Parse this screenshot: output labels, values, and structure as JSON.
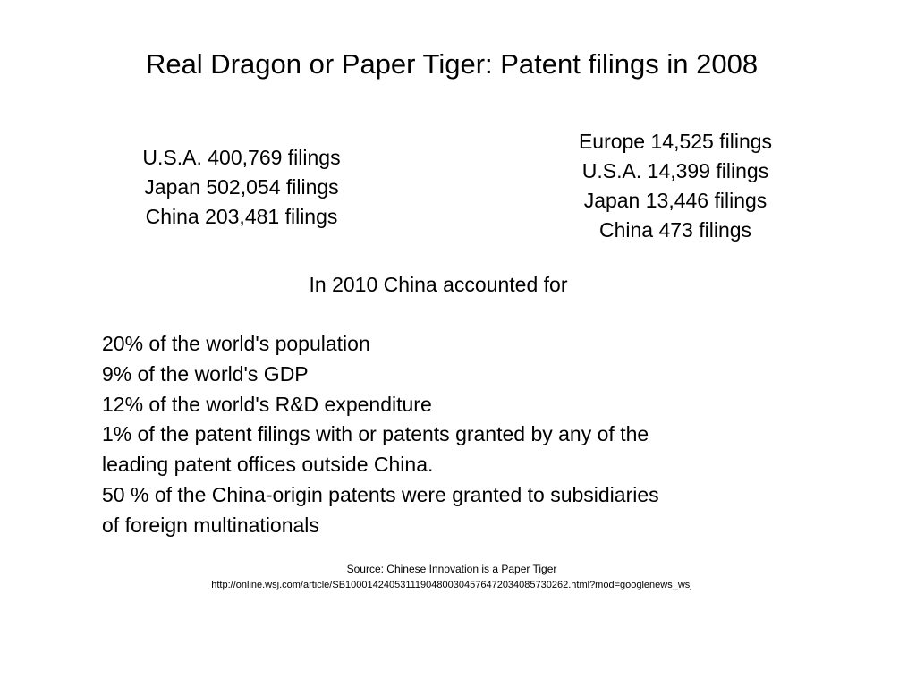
{
  "title": "Real Dragon or Paper Tiger: Patent filings in 2008",
  "left_stats": [
    "U.S.A. 400,769 filings",
    "Japan 502,054 filings",
    "China 203,481 filings"
  ],
  "right_stats": [
    "Europe 14,525 filings",
    "U.S.A. 14,399 filings",
    "Japan 13,446 filings",
    "China 473 filings"
  ],
  "section_heading": "In 2010 China accounted for",
  "facts": [
    "20% of the world's population",
    "9% of the world's GDP",
    "12% of the world's R&D expenditure",
    "1% of the patent filings with or patents granted by any of the",
    "leading patent offices outside China.",
    "50 % of the China-origin patents were granted to subsidiaries",
    "of foreign multinationals"
  ],
  "source": {
    "label": "Source: Chinese Innovation is a Paper Tiger",
    "url": "http://online.wsj.com/article/SB10001424053111904800304576472034085730262.html?mod=googlenews_wsj"
  }
}
